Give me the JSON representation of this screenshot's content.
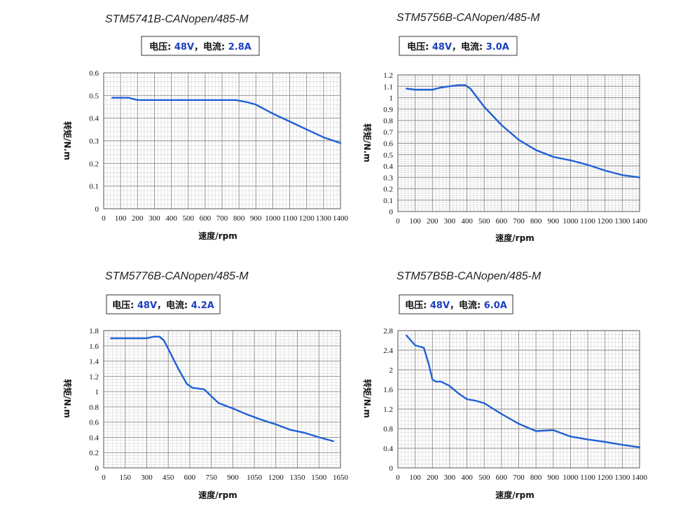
{
  "chart_data": [
    {
      "type": "line",
      "title": "STM5741B-CANopen/485-M",
      "spec": {
        "voltage_label": "电压: ",
        "voltage": "48V",
        "sep": "，",
        "current_label": "电流: ",
        "current": "2.8A"
      },
      "xlabel": "速度/rpm",
      "ylabel": "转矩/N.m",
      "xlim": [
        0,
        1400
      ],
      "ylim": [
        0,
        0.6
      ],
      "xticks": [
        0,
        100,
        200,
        300,
        400,
        500,
        600,
        700,
        800,
        900,
        1000,
        1100,
        1200,
        1300,
        1400
      ],
      "yticks": [
        0,
        0.1,
        0.2,
        0.3,
        0.4,
        0.5,
        0.6
      ],
      "ytick_labels": [
        "0",
        "0.1",
        "0.2",
        "0.3",
        "0.4",
        "0.5",
        "0.6"
      ],
      "series": [
        {
          "name": "torque",
          "x": [
            50,
            100,
            150,
            200,
            300,
            400,
            500,
            600,
            700,
            780,
            850,
            900,
            1000,
            1100,
            1200,
            1300,
            1400
          ],
          "y": [
            0.49,
            0.49,
            0.49,
            0.48,
            0.48,
            0.48,
            0.48,
            0.48,
            0.48,
            0.48,
            0.47,
            0.46,
            0.42,
            0.385,
            0.35,
            0.315,
            0.29
          ]
        }
      ]
    },
    {
      "type": "line",
      "title": "STM5756B-CANopen/485-M",
      "spec": {
        "voltage_label": "电压: ",
        "voltage": "48V",
        "sep": "，",
        "current_label": "电流: ",
        "current": "3.0A"
      },
      "xlabel": "速度/rpm",
      "ylabel": "转矩/N.m",
      "xlim": [
        0,
        1400
      ],
      "ylim": [
        0,
        1.2
      ],
      "xticks": [
        0,
        100,
        200,
        300,
        400,
        500,
        600,
        700,
        800,
        900,
        1000,
        1100,
        1200,
        1300,
        1400
      ],
      "yticks": [
        0,
        0.1,
        0.2,
        0.3,
        0.4,
        0.5,
        0.6,
        0.7,
        0.8,
        0.9,
        1.0,
        1.1,
        1.2
      ],
      "ytick_labels": [
        "0",
        "0.1",
        "0.2",
        "0.3",
        "0.4",
        "0.5",
        "0.6",
        "0.7",
        "0.8",
        "0.9",
        "1",
        "1.1",
        "1.2"
      ],
      "series": [
        {
          "name": "torque",
          "x": [
            50,
            100,
            150,
            200,
            250,
            300,
            350,
            390,
            420,
            500,
            600,
            700,
            800,
            900,
            1000,
            1100,
            1200,
            1300,
            1400
          ],
          "y": [
            1.08,
            1.07,
            1.07,
            1.07,
            1.09,
            1.1,
            1.11,
            1.11,
            1.08,
            0.92,
            0.76,
            0.63,
            0.54,
            0.48,
            0.45,
            0.41,
            0.36,
            0.32,
            0.3
          ]
        }
      ]
    },
    {
      "type": "line",
      "title": "STM5776B-CANopen/485-M",
      "spec": {
        "voltage_label": "电压: ",
        "voltage": "48V",
        "sep": "，",
        "current_label": "电流: ",
        "current": "4.2A"
      },
      "xlabel": "速度/rpm",
      "ylabel": "转矩/N.m",
      "xlim": [
        0,
        1650
      ],
      "ylim": [
        0,
        1.8
      ],
      "xticks": [
        0,
        150,
        300,
        450,
        600,
        750,
        900,
        1050,
        1200,
        1350,
        1500,
        1650
      ],
      "yticks": [
        0,
        0.2,
        0.4,
        0.6,
        0.8,
        1.0,
        1.2,
        1.4,
        1.6,
        1.8
      ],
      "ytick_labels": [
        "0",
        "0.2",
        "0.4",
        "0.6",
        "0.8",
        "1",
        "1.2",
        "1.4",
        "1.6",
        "1.8"
      ],
      "series": [
        {
          "name": "torque",
          "x": [
            50,
            150,
            300,
            350,
            390,
            420,
            450,
            520,
            580,
            620,
            700,
            750,
            800,
            900,
            1000,
            1100,
            1200,
            1300,
            1400,
            1500,
            1600
          ],
          "y": [
            1.7,
            1.7,
            1.7,
            1.72,
            1.72,
            1.67,
            1.56,
            1.3,
            1.1,
            1.05,
            1.03,
            0.94,
            0.85,
            0.78,
            0.7,
            0.63,
            0.57,
            0.5,
            0.46,
            0.4,
            0.35
          ]
        }
      ]
    },
    {
      "type": "line",
      "title": "STM57B5B-CANopen/485-M",
      "spec": {
        "voltage_label": "电压: ",
        "voltage": "48V",
        "sep": "，",
        "current_label": "电流: ",
        "current": "6.0A"
      },
      "xlabel": "速度/rpm",
      "ylabel": "转矩/N.m",
      "xlim": [
        0,
        1400
      ],
      "ylim": [
        0,
        2.8
      ],
      "xticks": [
        0,
        100,
        200,
        300,
        400,
        500,
        600,
        700,
        800,
        900,
        1000,
        1100,
        1200,
        1300,
        1400
      ],
      "yticks": [
        0,
        0.4,
        0.8,
        1.2,
        1.6,
        2.0,
        2.4,
        2.8
      ],
      "ytick_labels": [
        "0",
        "0.4",
        "0.8",
        "1.2",
        "1.6",
        "2",
        "2.4",
        "2.8"
      ],
      "series": [
        {
          "name": "torque",
          "x": [
            50,
            100,
            150,
            180,
            200,
            220,
            250,
            300,
            350,
            400,
            450,
            500,
            600,
            700,
            800,
            900,
            1000,
            1100,
            1200,
            1300,
            1400
          ],
          "y": [
            2.7,
            2.5,
            2.45,
            2.1,
            1.8,
            1.76,
            1.76,
            1.67,
            1.52,
            1.4,
            1.37,
            1.32,
            1.1,
            0.9,
            0.75,
            0.77,
            0.64,
            0.58,
            0.53,
            0.47,
            0.42
          ]
        }
      ]
    }
  ]
}
